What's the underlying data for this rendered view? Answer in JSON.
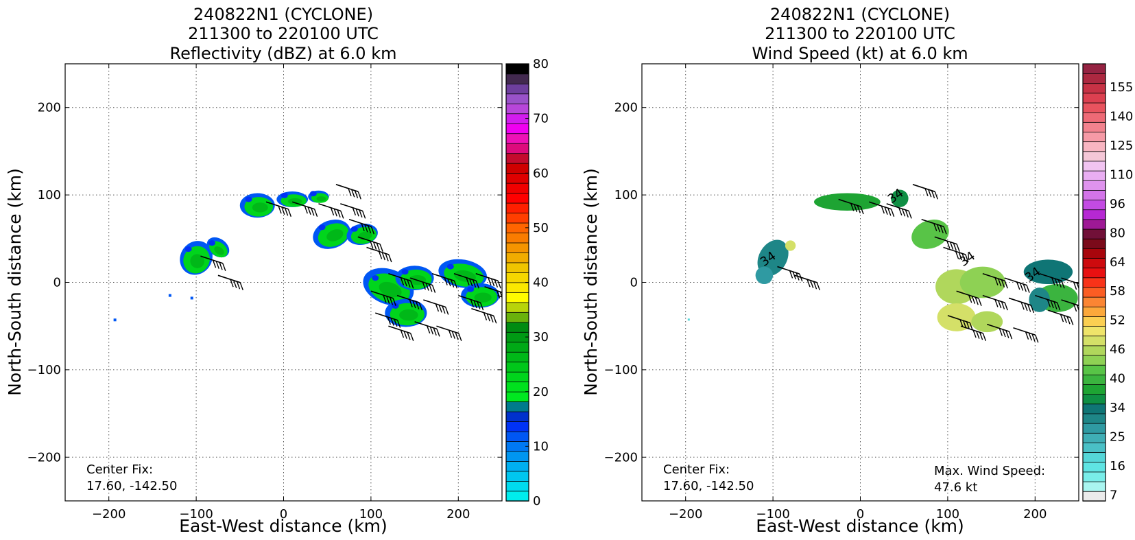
{
  "chart_data": [
    {
      "type": "heatmap",
      "title_lines": [
        "240822N1 (CYCLONE)",
        "211300 to 220100 UTC",
        "Reflectivity (dBZ) at 6.0 km"
      ],
      "xlabel": "East-West distance (km)",
      "ylabel": "North-South distance (km)",
      "xlim": [
        -250,
        250
      ],
      "ylim": [
        -250,
        250
      ],
      "xticks": [
        -200,
        -100,
        0,
        100,
        200
      ],
      "yticks": [
        -200,
        -100,
        0,
        100,
        200
      ],
      "grid": true,
      "note_lines": [
        "Center Fix:",
        "17.60, -142.50"
      ],
      "colorbar": {
        "min": 0,
        "max": 80,
        "ticks": [
          0,
          10,
          20,
          30,
          40,
          50,
          60,
          70,
          80
        ],
        "colors": [
          "#00eded",
          "#00dbee",
          "#00c6ef",
          "#00aff0",
          "#0096f1",
          "#0078f3",
          "#0057f4",
          "#0032f5",
          "#0031cc",
          "#007b8c",
          "#00e820",
          "#00e11e",
          "#00d51c",
          "#00c71a",
          "#00b818",
          "#00a916",
          "#009a14",
          "#008b12",
          "#6ab20c",
          "#b8d40a",
          "#fffb00",
          "#fbe800",
          "#f5d700",
          "#efc500",
          "#f1ac00",
          "#f59400",
          "#fa7c00",
          "#ff6500",
          "#ff3e00",
          "#ff1f00",
          "#ff0000",
          "#f00000",
          "#df0000",
          "#cf0000",
          "#c40b2d",
          "#dd0b7c",
          "#ee11b6",
          "#f000f0",
          "#d21cee",
          "#b746da",
          "#9952c9",
          "#6e3f9e",
          "#42294f",
          "#000000"
        ]
      },
      "echo_regions": [
        {
          "x": -100,
          "y": 28,
          "rx": 18,
          "ry": 20,
          "angle": -35
        },
        {
          "x": -75,
          "y": 40,
          "rx": 14,
          "ry": 10,
          "angle": -35
        },
        {
          "x": -30,
          "y": 88,
          "rx": 20,
          "ry": 14,
          "angle": 0
        },
        {
          "x": 10,
          "y": 95,
          "rx": 18,
          "ry": 9,
          "angle": 0
        },
        {
          "x": 40,
          "y": 98,
          "rx": 12,
          "ry": 7,
          "angle": 0
        },
        {
          "x": 55,
          "y": 55,
          "rx": 22,
          "ry": 16,
          "angle": 20
        },
        {
          "x": 90,
          "y": 55,
          "rx": 18,
          "ry": 12,
          "angle": 10
        },
        {
          "x": 120,
          "y": -5,
          "rx": 30,
          "ry": 20,
          "angle": -20
        },
        {
          "x": 140,
          "y": -35,
          "rx": 24,
          "ry": 16,
          "angle": 0
        },
        {
          "x": 150,
          "y": 5,
          "rx": 22,
          "ry": 14,
          "angle": 0
        },
        {
          "x": 205,
          "y": 10,
          "rx": 28,
          "ry": 16,
          "angle": -10
        },
        {
          "x": 225,
          "y": -15,
          "rx": 22,
          "ry": 14,
          "angle": 0
        }
      ],
      "barbs": [
        {
          "x": -95,
          "y": 30
        },
        {
          "x": -75,
          "y": 8
        },
        {
          "x": -20,
          "y": 92
        },
        {
          "x": 10,
          "y": 92
        },
        {
          "x": 40,
          "y": 90
        },
        {
          "x": 60,
          "y": 112
        },
        {
          "x": 65,
          "y": 90
        },
        {
          "x": 75,
          "y": 72
        },
        {
          "x": 85,
          "y": 52
        },
        {
          "x": 95,
          "y": 40
        },
        {
          "x": 120,
          "y": 10
        },
        {
          "x": 145,
          "y": 5
        },
        {
          "x": 170,
          "y": 10
        },
        {
          "x": 100,
          "y": -10
        },
        {
          "x": 130,
          "y": -15
        },
        {
          "x": 160,
          "y": -20
        },
        {
          "x": 105,
          "y": -35
        },
        {
          "x": 120,
          "y": -50
        },
        {
          "x": 150,
          "y": -45
        },
        {
          "x": 175,
          "y": -50
        },
        {
          "x": 195,
          "y": 10
        },
        {
          "x": 220,
          "y": 10
        },
        {
          "x": 200,
          "y": -15
        },
        {
          "x": 230,
          "y": -5
        },
        {
          "x": 215,
          "y": -30
        },
        {
          "x": 245,
          "y": -15
        }
      ],
      "isolated_echoes": [
        {
          "x": -193,
          "y": -43
        },
        {
          "x": -130,
          "y": -15
        },
        {
          "x": -105,
          "y": -18
        }
      ]
    },
    {
      "type": "heatmap",
      "title_lines": [
        "240822N1 (CYCLONE)",
        "211300 to 220100 UTC",
        "Wind Speed (kt) at 6.0 km"
      ],
      "xlabel": "East-West distance (km)",
      "ylabel": "North-South distance (km)",
      "xlim": [
        -250,
        250
      ],
      "ylim": [
        -250,
        250
      ],
      "xticks": [
        -200,
        -100,
        0,
        100,
        200
      ],
      "yticks": [
        -200,
        -100,
        0,
        100,
        200
      ],
      "grid": true,
      "note_lines": [
        "Center Fix:",
        "17.60, -142.50"
      ],
      "max_wind_lines": [
        "Max. Wind Speed:",
        "47.6 kt"
      ],
      "contour_labels": [
        {
          "x": -103,
          "y": 23,
          "text": "34"
        },
        {
          "x": 43,
          "y": 95,
          "text": "34"
        },
        {
          "x": 125,
          "y": 23,
          "text": "34"
        },
        {
          "x": 200,
          "y": 5,
          "text": "34"
        }
      ],
      "colorbar": {
        "min": 0,
        "max": 160,
        "tick_labels": [
          "7",
          "16",
          "25",
          "34",
          "40",
          "46",
          "52",
          "58",
          "64",
          "80",
          "96",
          "110",
          "125",
          "140",
          "155"
        ],
        "colors": [
          "#ebebeb",
          "#a9f5f0",
          "#79ede9",
          "#5fe4e3",
          "#55d6d8",
          "#4ac0c6",
          "#3faeb5",
          "#2f9aa2",
          "#1e8687",
          "#0f7575",
          "#0f8f44",
          "#1ea433",
          "#3bb43f",
          "#58c447",
          "#8ed154",
          "#b0d75c",
          "#d4e068",
          "#efe46a",
          "#fbcf52",
          "#fca83b",
          "#fb8533",
          "#fb5d23",
          "#f83319",
          "#e81011",
          "#cd0a0e",
          "#a8050c",
          "#7b0a1a",
          "#711038",
          "#9e1995",
          "#b628d3",
          "#c34be3",
          "#d374e9",
          "#df93ee",
          "#e9aef2",
          "#f1c4f1",
          "#f5c7d7",
          "#f8b5c1",
          "#f69aa6",
          "#f2828e",
          "#ee6a76",
          "#e8535e",
          "#dc4050",
          "#c73245",
          "#ac2840",
          "#952342"
        ]
      },
      "wind_regions": [
        {
          "x": -100,
          "y": 28,
          "rx": 16,
          "ry": 22,
          "angle": -30,
          "color": "#1e8687"
        },
        {
          "x": -110,
          "y": 8,
          "rx": 10,
          "ry": 10,
          "angle": 0,
          "color": "#2f9aa2"
        },
        {
          "x": -80,
          "y": 42,
          "rx": 6,
          "ry": 6,
          "angle": 0,
          "color": "#d4e068"
        },
        {
          "x": -15,
          "y": 92,
          "rx": 38,
          "ry": 10,
          "angle": 0,
          "color": "#1ea433"
        },
        {
          "x": 45,
          "y": 96,
          "rx": 10,
          "ry": 10,
          "angle": 0,
          "color": "#0f8f44"
        },
        {
          "x": 80,
          "y": 55,
          "rx": 22,
          "ry": 16,
          "angle": 20,
          "color": "#58c447"
        },
        {
          "x": 110,
          "y": -5,
          "rx": 24,
          "ry": 20,
          "angle": 0,
          "color": "#b0d75c"
        },
        {
          "x": 140,
          "y": 0,
          "rx": 26,
          "ry": 18,
          "angle": 0,
          "color": "#8ed154"
        },
        {
          "x": 110,
          "y": -40,
          "rx": 22,
          "ry": 16,
          "angle": 0,
          "color": "#d4e068"
        },
        {
          "x": 145,
          "y": -45,
          "rx": 18,
          "ry": 12,
          "angle": 0,
          "color": "#b0d75c"
        },
        {
          "x": 215,
          "y": 12,
          "rx": 28,
          "ry": 14,
          "angle": 0,
          "color": "#0f7575"
        },
        {
          "x": 225,
          "y": -18,
          "rx": 24,
          "ry": 16,
          "angle": 0,
          "color": "#3bb43f"
        },
        {
          "x": 205,
          "y": -20,
          "rx": 12,
          "ry": 14,
          "angle": 0,
          "color": "#1e8687"
        }
      ],
      "barbs": [
        {
          "x": -95,
          "y": 18
        },
        {
          "x": -75,
          "y": 8
        },
        {
          "x": -25,
          "y": 95
        },
        {
          "x": 10,
          "y": 92
        },
        {
          "x": 30,
          "y": 90
        },
        {
          "x": 60,
          "y": 112
        },
        {
          "x": 70,
          "y": 72
        },
        {
          "x": 85,
          "y": 52
        },
        {
          "x": 95,
          "y": 40
        },
        {
          "x": 140,
          "y": 10
        },
        {
          "x": 165,
          "y": 5
        },
        {
          "x": 110,
          "y": -10
        },
        {
          "x": 140,
          "y": -15
        },
        {
          "x": 170,
          "y": -18
        },
        {
          "x": 100,
          "y": -38
        },
        {
          "x": 115,
          "y": -50
        },
        {
          "x": 145,
          "y": -48
        },
        {
          "x": 175,
          "y": -52
        },
        {
          "x": 205,
          "y": 10
        },
        {
          "x": 230,
          "y": 5
        },
        {
          "x": 200,
          "y": -15
        },
        {
          "x": 230,
          "y": -20
        },
        {
          "x": 215,
          "y": -32
        },
        {
          "x": 245,
          "y": -25
        }
      ],
      "isolated_cells": [
        {
          "x": -196,
          "y": -43
        }
      ]
    }
  ]
}
